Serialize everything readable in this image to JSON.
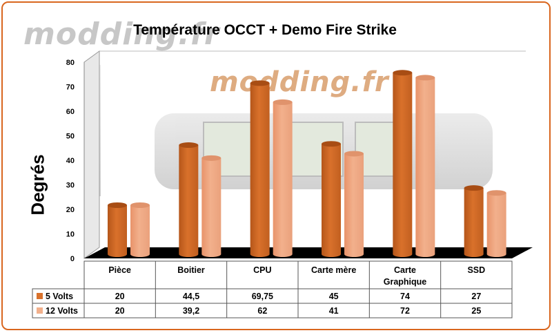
{
  "watermarks": {
    "top": "modding.fr",
    "center": "modding.fr"
  },
  "chart_data": {
    "type": "bar",
    "title": "Température OCCT + Demo Fire Strike",
    "ylabel": "Degrés",
    "xlabel": "",
    "ylim": [
      0,
      80
    ],
    "yticks": [
      0,
      10,
      20,
      30,
      40,
      50,
      60,
      70,
      80
    ],
    "categories": [
      [
        "Pièce"
      ],
      [
        "Boitier"
      ],
      [
        "CPU"
      ],
      [
        "Carte mère"
      ],
      [
        "Carte",
        "Graphique"
      ],
      [
        "SSD"
      ]
    ],
    "series": [
      {
        "name": "5 Volts",
        "values": [
          20,
          44.5,
          69.75,
          45,
          74,
          27
        ],
        "labels": [
          "20",
          "44,5",
          "69,75",
          "45",
          "74",
          "27"
        ]
      },
      {
        "name": "12 Volts",
        "values": [
          20,
          39.2,
          62,
          41,
          72,
          25
        ],
        "labels": [
          "20",
          "39,2",
          "62",
          "41",
          "72",
          "25"
        ]
      }
    ],
    "colors": {
      "series0": "#d9712b",
      "series1": "#f2b08c",
      "floor": "#000000",
      "frame": "#d9661e"
    },
    "grid": false,
    "legend": "data-table"
  }
}
